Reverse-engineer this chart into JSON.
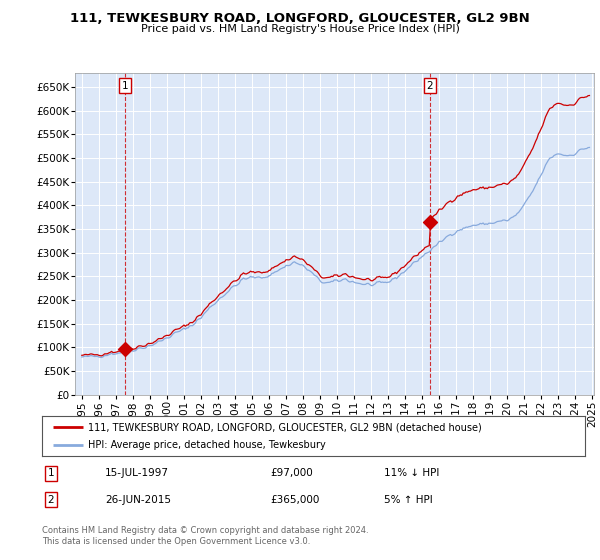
{
  "title": "111, TEWKESBURY ROAD, LONGFORD, GLOUCESTER, GL2 9BN",
  "subtitle": "Price paid vs. HM Land Registry's House Price Index (HPI)",
  "legend_line1": "111, TEWKESBURY ROAD, LONGFORD, GLOUCESTER, GL2 9BN (detached house)",
  "legend_line2": "HPI: Average price, detached house, Tewkesbury",
  "annotation1_date": "15-JUL-1997",
  "annotation1_price": "£97,000",
  "annotation1_hpi": "11% ↓ HPI",
  "annotation1_year": 1997.542,
  "annotation1_value": 97000,
  "annotation2_date": "26-JUN-2015",
  "annotation2_price": "£365,000",
  "annotation2_hpi": "5% ↑ HPI",
  "annotation2_year": 2015.458,
  "annotation2_value": 365000,
  "price_color": "#cc0000",
  "hpi_color": "#88aadd",
  "background_color": "#dde8f8",
  "grid_color": "#ffffff",
  "ylim": [
    0,
    680000
  ],
  "yticks": [
    0,
    50000,
    100000,
    150000,
    200000,
    250000,
    300000,
    350000,
    400000,
    450000,
    500000,
    550000,
    600000,
    650000
  ],
  "footer_text": "Contains HM Land Registry data © Crown copyright and database right 2024.\nThis data is licensed under the Open Government Licence v3.0.",
  "xlim_min": 1994.6,
  "xlim_max": 2025.1,
  "xtick_years": [
    1995,
    1996,
    1997,
    1998,
    1999,
    2000,
    2001,
    2002,
    2003,
    2004,
    2005,
    2006,
    2007,
    2008,
    2009,
    2010,
    2011,
    2012,
    2013,
    2014,
    2015,
    2016,
    2017,
    2018,
    2019,
    2020,
    2021,
    2022,
    2023,
    2024,
    2025
  ]
}
